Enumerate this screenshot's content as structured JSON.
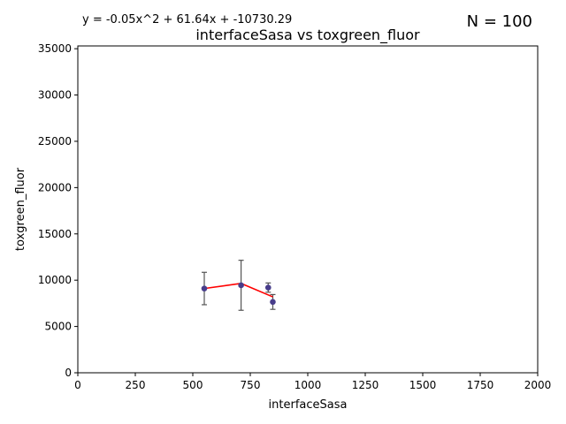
{
  "chart_data": {
    "type": "scatter",
    "title": "interfaceSasa vs toxgreen_fluor",
    "xlabel": "interfaceSasa",
    "ylabel": "toxgreen_fluor",
    "equation": "y = -0.05x^2 + 61.64x + -10730.29",
    "n_label": "N = 100",
    "xlim": [
      0,
      2000
    ],
    "ylim": [
      0,
      35300
    ],
    "x_ticks": [
      0,
      250,
      500,
      750,
      1000,
      1250,
      1500,
      1750,
      2000
    ],
    "y_ticks": [
      0,
      5000,
      10000,
      15000,
      20000,
      25000,
      30000,
      35000
    ],
    "grid": false,
    "points": [
      {
        "x": 550,
        "y": 9100,
        "err": 1750
      },
      {
        "x": 710,
        "y": 9450,
        "err": 2700
      },
      {
        "x": 828,
        "y": 9200,
        "err": 500
      },
      {
        "x": 848,
        "y": 7650,
        "err": 800
      }
    ],
    "fit_line": {
      "x": [
        550,
        710,
        848
      ],
      "y": [
        9100,
        9650,
        8200
      ]
    },
    "colors": {
      "point": "#483d8b",
      "errorbar": "#555555",
      "fit": "#ff0000",
      "axes": "#000000"
    }
  }
}
